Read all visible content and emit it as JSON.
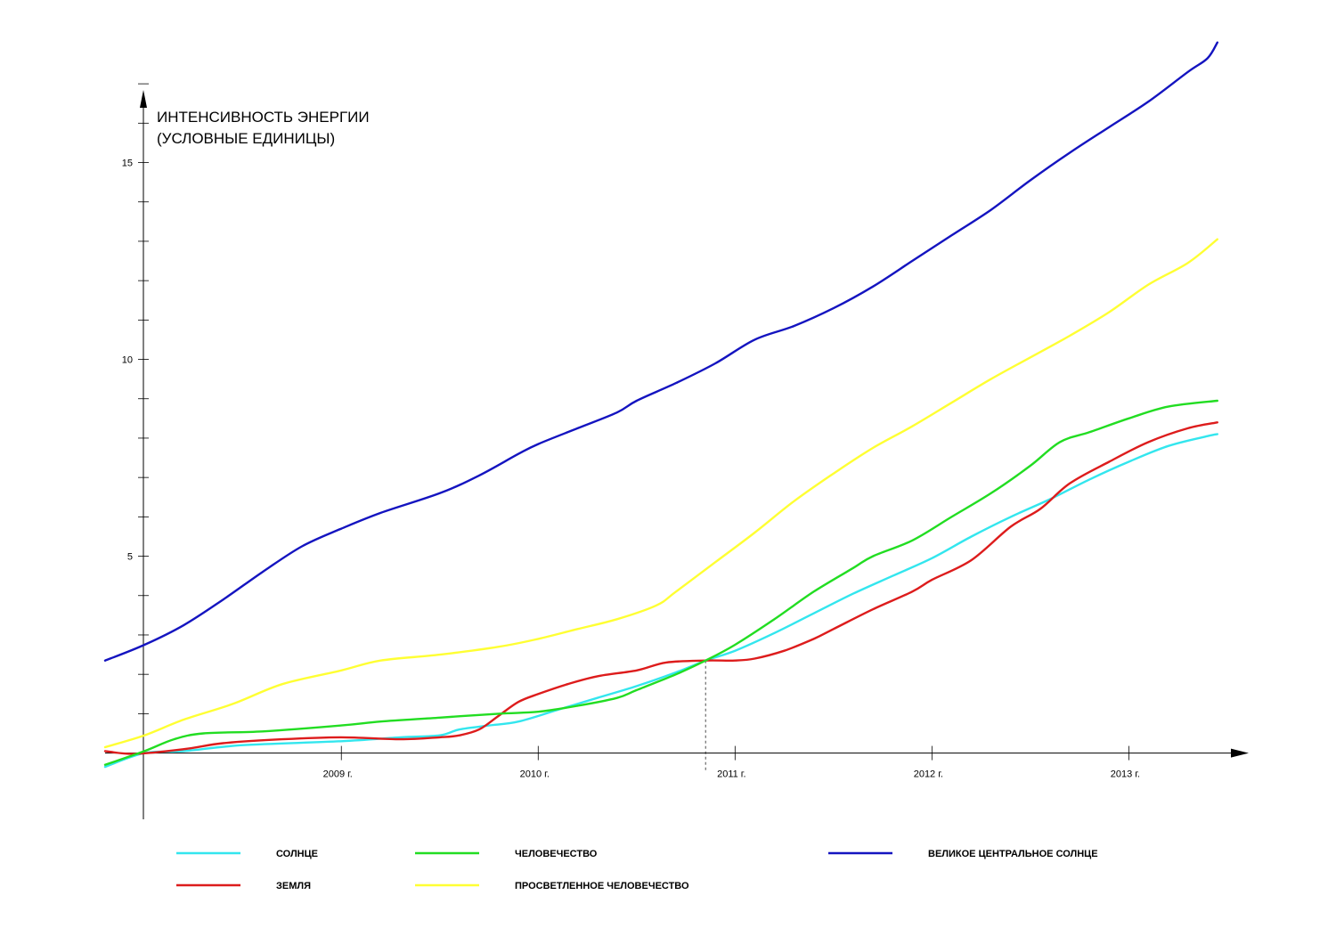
{
  "chart_data": {
    "type": "line",
    "ylabel_lines": [
      "ИНТЕНСИВНОСТЬ ЭНЕРГИИ",
      "(УСЛОВНЫЕ ЕДИНИЦЫ)"
    ],
    "xlabel": "",
    "x_ticks": [
      {
        "label": "2009 г.",
        "x": 2009
      },
      {
        "label": "2010 г.",
        "x": 2010
      },
      {
        "label": "2011 г.",
        "x": 2011
      },
      {
        "label": "2012 г.",
        "x": 2012
      },
      {
        "label": "2013 г.",
        "x": 2013
      }
    ],
    "y_ticks": [
      {
        "label": "5",
        "y": 5
      },
      {
        "label": "10",
        "y": 10
      },
      {
        "label": "15",
        "y": 15
      }
    ],
    "y_minor_step": 1,
    "xlim": [
      2007.8,
      2013.6
    ],
    "ylim": [
      -1.05,
      17.5
    ],
    "marker_x": 2010.85,
    "grid": false,
    "legend_position": "bottom",
    "series": [
      {
        "name": "СОЛНЦЕ",
        "color": "#33e6ee",
        "points": [
          [
            2007.8,
            -0.35
          ],
          [
            2008.0,
            0.0
          ],
          [
            2008.2,
            0.05
          ],
          [
            2008.5,
            0.2
          ],
          [
            2009.0,
            0.3
          ],
          [
            2009.3,
            0.4
          ],
          [
            2009.5,
            0.45
          ],
          [
            2009.6,
            0.6
          ],
          [
            2009.75,
            0.7
          ],
          [
            2009.9,
            0.8
          ],
          [
            2010.1,
            1.1
          ],
          [
            2010.3,
            1.4
          ],
          [
            2010.5,
            1.7
          ],
          [
            2010.7,
            2.05
          ],
          [
            2010.85,
            2.35
          ],
          [
            2011.0,
            2.6
          ],
          [
            2011.2,
            3.05
          ],
          [
            2011.4,
            3.55
          ],
          [
            2011.6,
            4.05
          ],
          [
            2011.8,
            4.5
          ],
          [
            2012.0,
            4.95
          ],
          [
            2012.2,
            5.5
          ],
          [
            2012.4,
            6.0
          ],
          [
            2012.6,
            6.45
          ],
          [
            2012.8,
            6.95
          ],
          [
            2013.0,
            7.4
          ],
          [
            2013.2,
            7.8
          ],
          [
            2013.4,
            8.05
          ],
          [
            2013.45,
            8.1
          ]
        ]
      },
      {
        "name": "ЗЕМЛЯ",
        "color": "#dd1c1c",
        "points": [
          [
            2007.8,
            0.05
          ],
          [
            2007.95,
            -0.02
          ],
          [
            2008.2,
            0.1
          ],
          [
            2008.4,
            0.25
          ],
          [
            2008.7,
            0.35
          ],
          [
            2009.0,
            0.4
          ],
          [
            2009.3,
            0.35
          ],
          [
            2009.5,
            0.4
          ],
          [
            2009.6,
            0.45
          ],
          [
            2009.7,
            0.6
          ],
          [
            2009.8,
            0.95
          ],
          [
            2009.9,
            1.3
          ],
          [
            2010.0,
            1.5
          ],
          [
            2010.15,
            1.75
          ],
          [
            2010.3,
            1.95
          ],
          [
            2010.5,
            2.1
          ],
          [
            2010.65,
            2.3
          ],
          [
            2010.85,
            2.35
          ],
          [
            2011.0,
            2.35
          ],
          [
            2011.1,
            2.4
          ],
          [
            2011.25,
            2.6
          ],
          [
            2011.4,
            2.9
          ],
          [
            2011.5,
            3.15
          ],
          [
            2011.7,
            3.65
          ],
          [
            2011.9,
            4.1
          ],
          [
            2012.0,
            4.4
          ],
          [
            2012.2,
            4.9
          ],
          [
            2012.4,
            5.75
          ],
          [
            2012.55,
            6.2
          ],
          [
            2012.7,
            6.85
          ],
          [
            2012.9,
            7.4
          ],
          [
            2013.1,
            7.9
          ],
          [
            2013.3,
            8.25
          ],
          [
            2013.45,
            8.4
          ]
        ]
      },
      {
        "name": "ЧЕЛОВЕЧЕСТВО",
        "color": "#22dd22",
        "points": [
          [
            2007.8,
            -0.3
          ],
          [
            2008.0,
            0.05
          ],
          [
            2008.15,
            0.35
          ],
          [
            2008.3,
            0.5
          ],
          [
            2008.6,
            0.55
          ],
          [
            2009.0,
            0.7
          ],
          [
            2009.2,
            0.8
          ],
          [
            2009.5,
            0.9
          ],
          [
            2009.8,
            1.0
          ],
          [
            2010.0,
            1.05
          ],
          [
            2010.2,
            1.2
          ],
          [
            2010.4,
            1.4
          ],
          [
            2010.5,
            1.6
          ],
          [
            2010.7,
            2.0
          ],
          [
            2010.85,
            2.35
          ],
          [
            2011.0,
            2.75
          ],
          [
            2011.2,
            3.4
          ],
          [
            2011.4,
            4.1
          ],
          [
            2011.6,
            4.7
          ],
          [
            2011.7,
            5.0
          ],
          [
            2011.9,
            5.4
          ],
          [
            2012.1,
            6.0
          ],
          [
            2012.3,
            6.6
          ],
          [
            2012.5,
            7.3
          ],
          [
            2012.65,
            7.9
          ],
          [
            2012.8,
            8.15
          ],
          [
            2013.0,
            8.5
          ],
          [
            2013.2,
            8.8
          ],
          [
            2013.45,
            8.95
          ]
        ]
      },
      {
        "name": "ПРОСВЕТЛЕННОЕ ЧЕЛОВЕЧЕСТВО",
        "color": "#ffff33",
        "points": [
          [
            2007.8,
            0.15
          ],
          [
            2008.0,
            0.45
          ],
          [
            2008.2,
            0.85
          ],
          [
            2008.45,
            1.25
          ],
          [
            2008.7,
            1.75
          ],
          [
            2009.0,
            2.1
          ],
          [
            2009.2,
            2.35
          ],
          [
            2009.5,
            2.5
          ],
          [
            2009.8,
            2.7
          ],
          [
            2010.0,
            2.9
          ],
          [
            2010.2,
            3.15
          ],
          [
            2010.4,
            3.4
          ],
          [
            2010.6,
            3.75
          ],
          [
            2010.7,
            4.1
          ],
          [
            2010.9,
            4.85
          ],
          [
            2011.1,
            5.6
          ],
          [
            2011.3,
            6.4
          ],
          [
            2011.5,
            7.1
          ],
          [
            2011.7,
            7.75
          ],
          [
            2011.9,
            8.3
          ],
          [
            2012.1,
            8.9
          ],
          [
            2012.3,
            9.5
          ],
          [
            2012.5,
            10.05
          ],
          [
            2012.7,
            10.6
          ],
          [
            2012.9,
            11.2
          ],
          [
            2013.1,
            11.9
          ],
          [
            2013.3,
            12.45
          ],
          [
            2013.45,
            13.05
          ]
        ]
      },
      {
        "name": "ВЕЛИКОЕ ЦЕНТРАЛЬНОЕ СОЛНЦЕ",
        "color": "#1414c0",
        "points": [
          [
            2007.8,
            2.35
          ],
          [
            2008.0,
            2.75
          ],
          [
            2008.2,
            3.25
          ],
          [
            2008.4,
            3.9
          ],
          [
            2008.6,
            4.6
          ],
          [
            2008.8,
            5.25
          ],
          [
            2009.0,
            5.7
          ],
          [
            2009.2,
            6.1
          ],
          [
            2009.5,
            6.6
          ],
          [
            2009.7,
            7.05
          ],
          [
            2009.9,
            7.6
          ],
          [
            2010.0,
            7.85
          ],
          [
            2010.2,
            8.25
          ],
          [
            2010.4,
            8.65
          ],
          [
            2010.5,
            8.95
          ],
          [
            2010.7,
            9.4
          ],
          [
            2010.9,
            9.9
          ],
          [
            2011.1,
            10.5
          ],
          [
            2011.3,
            10.85
          ],
          [
            2011.5,
            11.3
          ],
          [
            2011.7,
            11.85
          ],
          [
            2011.9,
            12.5
          ],
          [
            2012.1,
            13.15
          ],
          [
            2012.3,
            13.8
          ],
          [
            2012.5,
            14.55
          ],
          [
            2012.7,
            15.25
          ],
          [
            2012.9,
            15.9
          ],
          [
            2013.1,
            16.55
          ],
          [
            2013.3,
            17.3
          ],
          [
            2013.4,
            17.65
          ],
          [
            2013.45,
            18.05
          ]
        ]
      }
    ],
    "legend_columns": [
      [
        "СОЛНЦЕ",
        "ЗЕМЛЯ"
      ],
      [
        "ЧЕЛОВЕЧЕСТВО",
        "ПРОСВЕТЛЕННОЕ ЧЕЛОВЕЧЕСТВО"
      ],
      [
        "ВЕЛИКОЕ ЦЕНТРАЛЬНОЕ СОЛНЦЕ"
      ]
    ]
  }
}
